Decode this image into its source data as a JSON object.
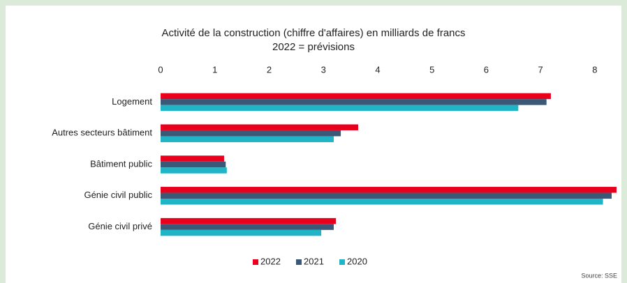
{
  "chart_data": {
    "type": "hbar",
    "title": "Activité de la construction (chiffre d'affaires) en milliards de francs",
    "subtitle": "2022 = prévisions",
    "categories": [
      "Logement",
      "Autres secteurs bâtiment",
      "Bâtiment public",
      "Génie civil public",
      "Génie civil privé"
    ],
    "series": [
      {
        "name": "2022",
        "color": "#e8001c",
        "values": [
          7.19,
          3.64,
          1.17,
          8.4,
          3.23
        ]
      },
      {
        "name": "2021",
        "color": "#3b5877",
        "values": [
          7.11,
          3.32,
          1.2,
          8.31,
          3.19
        ]
      },
      {
        "name": "2020",
        "color": "#20b5c6",
        "values": [
          6.59,
          3.19,
          1.22,
          8.15,
          2.96
        ]
      }
    ],
    "xlim": [
      0,
      8.4
    ],
    "xticks": [
      0,
      1,
      2,
      3,
      4,
      5,
      6,
      7,
      8
    ],
    "legend": "bottom",
    "source": "Source: SSE"
  }
}
